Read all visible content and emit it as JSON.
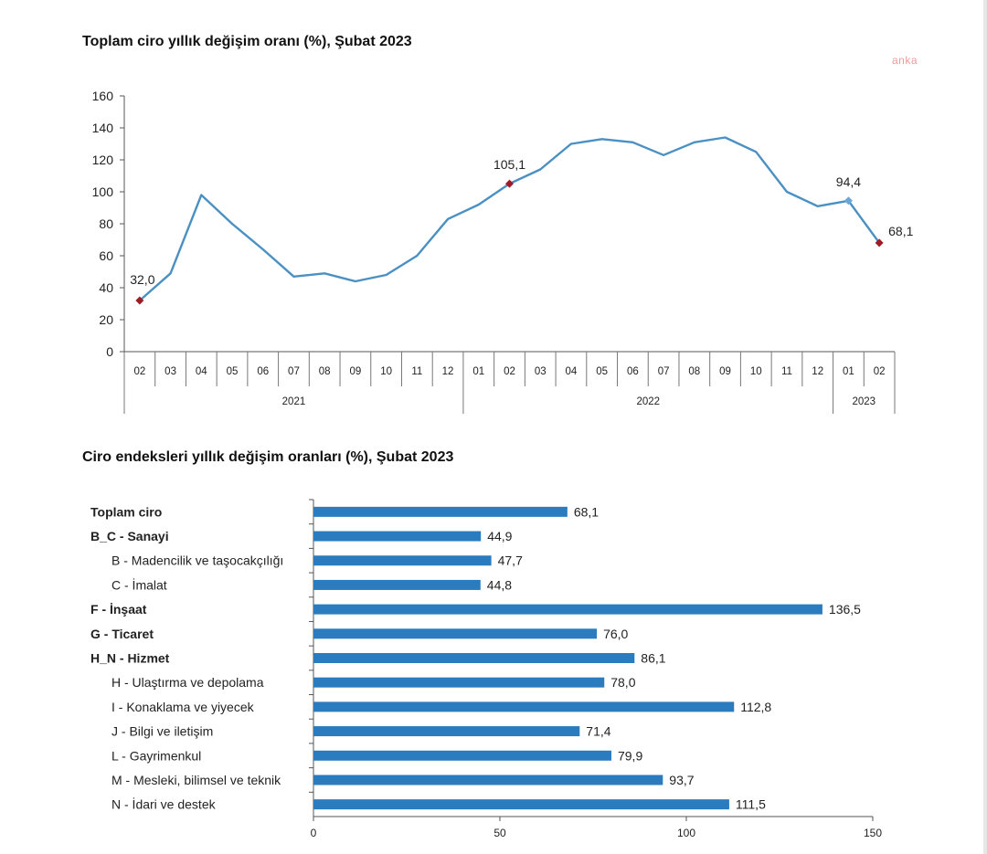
{
  "line_chart_title": "Toplam ciro yıllık değişim oranı (%), Şubat 2023",
  "bar_chart_title": "Ciro endeksleri yıllık değişim oranları (%), Şubat 2023",
  "watermark": "anka",
  "colors": {
    "line": "#4a90c2",
    "marker_red": "#a01c24",
    "marker_blue": "#6aa7d6",
    "bar": "#2b7bbf"
  },
  "chart_data": [
    {
      "type": "line",
      "title": "Toplam ciro yıllık değişim oranı (%), Şubat 2023",
      "x": [
        "02",
        "03",
        "04",
        "05",
        "06",
        "07",
        "08",
        "09",
        "10",
        "11",
        "12",
        "01",
        "02",
        "03",
        "04",
        "05",
        "06",
        "07",
        "08",
        "09",
        "10",
        "11",
        "12",
        "01",
        "02"
      ],
      "years": [
        {
          "label": "2021",
          "from": 0,
          "to": 10
        },
        {
          "label": "2022",
          "from": 11,
          "to": 22
        },
        {
          "label": "2023",
          "from": 23,
          "to": 24
        }
      ],
      "series": [
        {
          "values": [
            32.0,
            49,
            98,
            80,
            64,
            47,
            49,
            44,
            48,
            60,
            83,
            92,
            105.1,
            114,
            130,
            133,
            131,
            123,
            131,
            134,
            125,
            100,
            91,
            94.4,
            68.1
          ]
        }
      ],
      "annotations": [
        {
          "index": 0,
          "label": "32,0",
          "marker": "red"
        },
        {
          "index": 12,
          "label": "105,1",
          "marker": "red"
        },
        {
          "index": 23,
          "label": "94,4",
          "marker": "blue"
        },
        {
          "index": 24,
          "label": "68,1",
          "marker": "red"
        }
      ],
      "ylim": [
        0,
        160
      ],
      "yticks": [
        0,
        20,
        40,
        60,
        80,
        100,
        120,
        140,
        160
      ],
      "grid": false
    },
    {
      "type": "bar",
      "orientation": "horizontal",
      "title": "Ciro endeksleri yıllık değişim oranları (%), Şubat 2023",
      "categories": [
        {
          "label": "Toplam ciro",
          "bold": true,
          "indent": false
        },
        {
          "label": "B_C - Sanayi",
          "bold": true,
          "indent": false
        },
        {
          "label": "B - Madencilik ve taşocakçılığı",
          "bold": false,
          "indent": true
        },
        {
          "label": "C - İmalat",
          "bold": false,
          "indent": true
        },
        {
          "label": "F - İnşaat",
          "bold": true,
          "indent": false
        },
        {
          "label": "G - Ticaret",
          "bold": true,
          "indent": false
        },
        {
          "label": "H_N - Hizmet",
          "bold": true,
          "indent": false
        },
        {
          "label": "H - Ulaştırma ve depolama",
          "bold": false,
          "indent": true
        },
        {
          "label": "I - Konaklama ve yiyecek",
          "bold": false,
          "indent": true
        },
        {
          "label": "J - Bilgi ve iletişim",
          "bold": false,
          "indent": true
        },
        {
          "label": "L - Gayrimenkul",
          "bold": false,
          "indent": true
        },
        {
          "label": "M - Mesleki, bilimsel ve teknik",
          "bold": false,
          "indent": true
        },
        {
          "label": "N - İdari ve destek",
          "bold": false,
          "indent": true
        }
      ],
      "values": [
        68.1,
        44.9,
        47.7,
        44.8,
        136.5,
        76.0,
        86.1,
        78.0,
        112.8,
        71.4,
        79.9,
        93.7,
        111.5
      ],
      "value_labels": [
        "68,1",
        "44,9",
        "47,7",
        "44,8",
        "136,5",
        "76,0",
        "86,1",
        "78,0",
        "112,8",
        "71,4",
        "79,9",
        "93,7",
        "111,5"
      ],
      "xlim": [
        0,
        150
      ],
      "xticks": [
        0,
        50,
        100,
        150
      ],
      "grid": false
    }
  ]
}
